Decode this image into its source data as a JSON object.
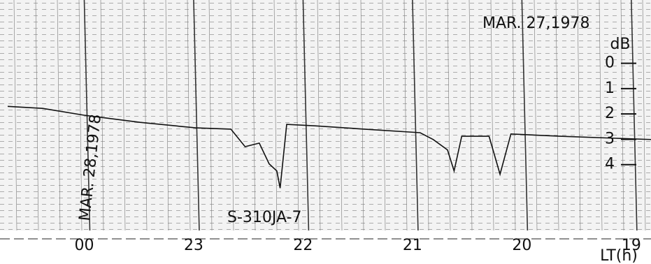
{
  "chart_data": {
    "type": "line",
    "xlabel": "LT(h)",
    "ylabel": "dB",
    "annotations": [
      "MAR. 27,1978",
      "MAR. 28,1978",
      "S-310JA-7"
    ],
    "x": [
      24.7,
      24.38,
      24.0,
      23.49,
      22.98,
      22.66,
      22.53,
      22.4,
      22.31,
      22.24,
      22.21,
      22.15,
      21.89,
      21.44,
      20.93,
      20.81,
      20.68,
      20.62,
      20.55,
      20.3,
      20.2,
      20.1,
      19.65,
      19.14,
      18.81
    ],
    "values": [
      1.7,
      1.78,
      2.05,
      2.33,
      2.55,
      2.6,
      3.29,
      3.15,
      3.97,
      4.25,
      4.93,
      2.41,
      2.47,
      2.6,
      2.74,
      3.01,
      3.42,
      4.25,
      2.88,
      2.88,
      4.38,
      2.79,
      2.88,
      2.96,
      3.01
    ],
    "color": "#111111",
    "xlim": [
      24.77,
      18.82
    ],
    "xticks": [
      {
        "value": 24,
        "label": "00"
      },
      23,
      22,
      21,
      20,
      19
    ],
    "ylim": [
      6.6,
      -2.5
    ],
    "yticks": [
      0,
      1,
      2,
      3,
      4
    ],
    "grid": true
  }
}
